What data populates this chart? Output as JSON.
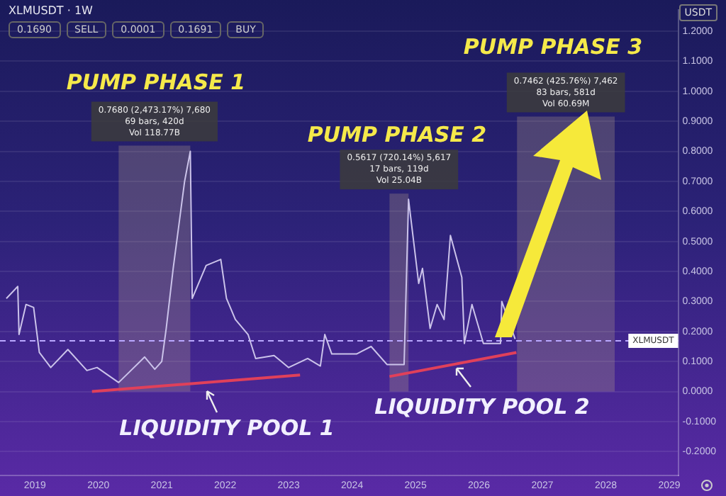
{
  "chart_data": {
    "type": "line",
    "title": "XLMUSDT · 1W",
    "ylabel": "USDT",
    "xlim": [
      2018.45,
      2029.14
    ],
    "ylim": [
      -0.28,
      1.27
    ],
    "xticks": [
      2019,
      2020,
      2021,
      2022,
      2023,
      2024,
      2025,
      2026,
      2027,
      2028,
      2029
    ],
    "yticks": [
      {
        "value": -0.2,
        "label": "-0.2000"
      },
      {
        "value": -0.1,
        "label": "-0.1000"
      },
      {
        "value": 0,
        "label": "0.0000"
      },
      {
        "value": 0.1,
        "label": "0.1000"
      },
      {
        "value": 0.2,
        "label": "0.2000"
      },
      {
        "value": 0.3,
        "label": "0.3000"
      },
      {
        "value": 0.4,
        "label": "0.4000"
      },
      {
        "value": 0.5,
        "label": "0.5000"
      },
      {
        "value": 0.6,
        "label": "0.6000"
      },
      {
        "value": 0.7,
        "label": "0.7000"
      },
      {
        "value": 0.8,
        "label": "0.8000"
      },
      {
        "value": 0.9,
        "label": "0.9000"
      },
      {
        "value": 1.0,
        "label": "1.0000"
      },
      {
        "value": 1.1,
        "label": "1.1000"
      },
      {
        "value": 1.2,
        "label": "1.2000"
      }
    ],
    "grid": "y",
    "legend": false,
    "marker": "none",
    "series": [
      {
        "color": "#cbc3ea",
        "x": [
          2018.55,
          2018.73,
          2018.75,
          2018.86,
          2018.98,
          2019.07,
          2019.25,
          2019.52,
          2019.82,
          2019.98,
          2020.32,
          2020.73,
          2020.89,
          2021.0,
          2021.07,
          2021.18,
          2021.36,
          2021.45,
          2021.48,
          2021.7,
          2021.93,
          2022.02,
          2022.16,
          2022.36,
          2022.48,
          2022.77,
          2023.0,
          2023.3,
          2023.5,
          2023.57,
          2023.68,
          2024.07,
          2024.3,
          2024.55,
          2024.82,
          2024.89,
          2025.05,
          2025.11,
          2025.23,
          2025.34,
          2025.45,
          2025.55,
          2025.73,
          2025.77,
          2025.89,
          2026.07,
          2026.34,
          2026.36,
          2026.57
        ],
        "values": [
          0.31,
          0.35,
          0.19,
          0.29,
          0.28,
          0.13,
          0.08,
          0.14,
          0.07,
          0.08,
          0.03,
          0.115,
          0.074,
          0.1,
          0.21,
          0.41,
          0.7,
          0.8,
          0.31,
          0.42,
          0.44,
          0.31,
          0.24,
          0.19,
          0.11,
          0.12,
          0.08,
          0.11,
          0.085,
          0.19,
          0.125,
          0.125,
          0.15,
          0.09,
          0.09,
          0.64,
          0.36,
          0.41,
          0.21,
          0.29,
          0.24,
          0.52,
          0.38,
          0.16,
          0.29,
          0.16,
          0.16,
          0.3,
          0.175
        ]
      },
      {
        "color": "#e0405a",
        "x": [
          2019.9,
          2023.18
        ],
        "values": [
          0.0,
          0.055
        ]
      },
      {
        "color": "#e0405a",
        "x": [
          2024.59,
          2026.59
        ],
        "values": [
          0.05,
          0.13
        ]
      }
    ],
    "ref_lines": [
      {
        "axis": "y",
        "value": 0.169,
        "label": "XLMUSDT",
        "color": "#b9a8ff",
        "line_style": "dashed"
      }
    ],
    "bands": [
      {
        "axis": "x",
        "from": 2020.32,
        "to": 2021.45,
        "label": "0.7680 (2,473.17%) 7,680\n69 bars, 420d\nVol 118.77B",
        "color": "#b9a48a"
      },
      {
        "axis": "x",
        "from": 2024.59,
        "to": 2024.89,
        "label": "0.5617 (720.14%) 5,617\n17 bars, 119d\nVol 25.04B",
        "color": "#b9a48a"
      },
      {
        "axis": "x",
        "from": 2026.6,
        "to": 2028.14,
        "label": "0.7462 (425.76%) 7,462\n83 bars, 581d\nVol 60.69M",
        "color": "#b9a48a"
      }
    ],
    "annotations": [
      "0.1690",
      "SELL",
      "0.0001",
      "0.1691",
      "BUY",
      "PUMP PHASE 1",
      "PUMP PHASE 2",
      "PUMP PHASE 3",
      "LIQUIDITY POOL 1",
      "LIQUIDITY POOL 2"
    ]
  }
}
